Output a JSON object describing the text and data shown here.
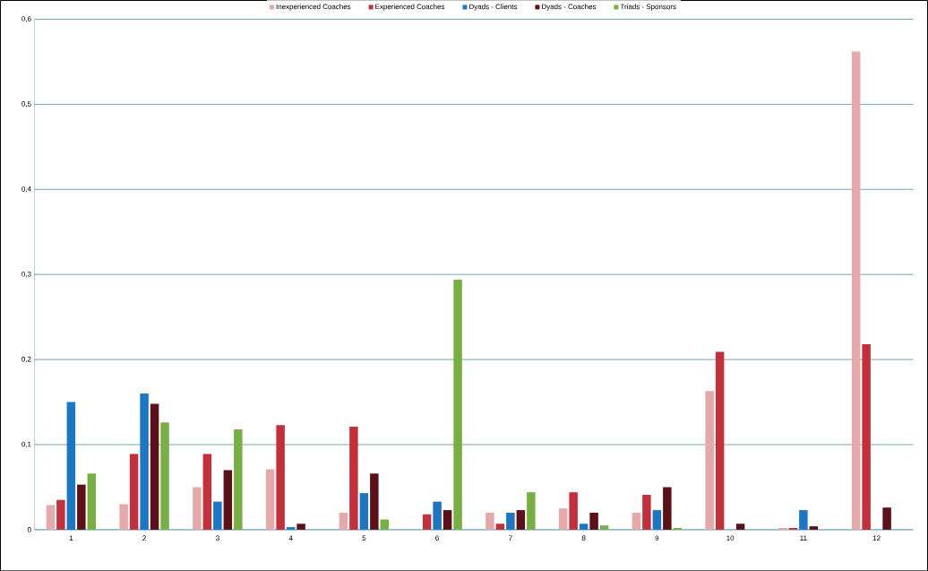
{
  "chart_data": {
    "type": "bar",
    "categories": [
      "1",
      "2",
      "3",
      "4",
      "5",
      "6",
      "7",
      "8",
      "9",
      "10",
      "11",
      "12"
    ],
    "series": [
      {
        "name": "Inexperienced Coaches",
        "color": "#e6a9a9",
        "values": [
          0.029,
          0.03,
          0.05,
          0.071,
          0.02,
          0,
          0.02,
          0.025,
          0.02,
          0.163,
          0.002,
          0.562
        ]
      },
      {
        "name": "Experienced Coaches",
        "color": "#c3303b",
        "values": [
          0.035,
          0.089,
          0.089,
          0.123,
          0.121,
          0.018,
          0.007,
          0.044,
          0.041,
          0.209,
          0.002,
          0.218
        ]
      },
      {
        "name": "Dyads - Clients",
        "color": "#1b77c3",
        "values": [
          0.15,
          0.16,
          0.033,
          0.003,
          0.043,
          0.033,
          0.02,
          0.007,
          0.023,
          0,
          0.023,
          0
        ]
      },
      {
        "name": "Dyads - Coaches",
        "color": "#5c1119",
        "values": [
          0.053,
          0.148,
          0.07,
          0.007,
          0.066,
          0.023,
          0.023,
          0.02,
          0.05,
          0.007,
          0.004,
          0.026
        ]
      },
      {
        "name": "Triads - Sponsors",
        "color": "#76b043",
        "values": [
          0.066,
          0.126,
          0.118,
          0,
          0.012,
          0.294,
          0.044,
          0.005,
          0.002,
          0,
          0,
          0
        ]
      }
    ],
    "ylim": [
      0,
      0.6
    ],
    "yticks": [
      0,
      {
        "value": 0.1,
        "label": "0,1"
      },
      {
        "value": 0.2,
        "label": "0,2"
      },
      {
        "value": 0.3,
        "label": "0,3"
      },
      {
        "value": 0.4,
        "label": "0,4"
      },
      {
        "value": 0.5,
        "label": "0,5"
      },
      {
        "value": 0.6,
        "label": "0,6"
      }
    ],
    "grid": "y",
    "legend": "top"
  }
}
